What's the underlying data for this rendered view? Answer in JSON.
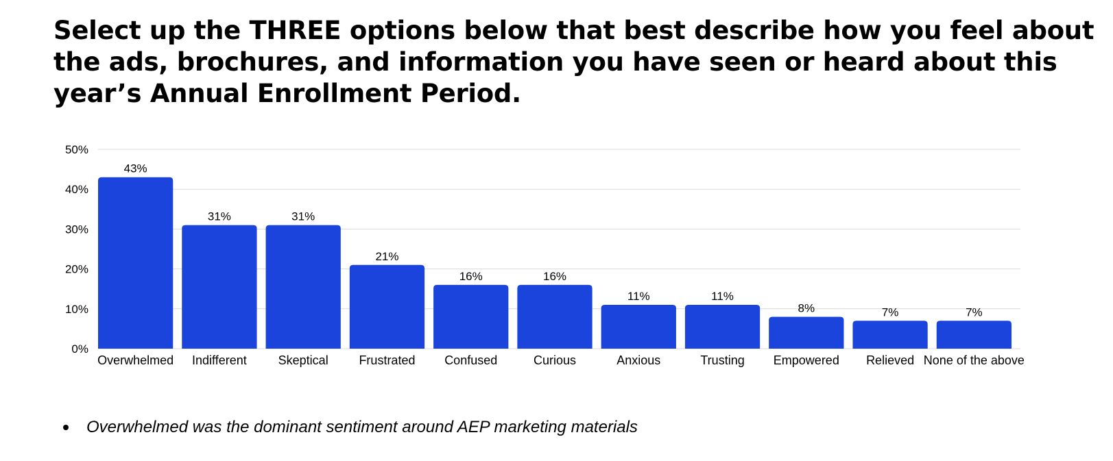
{
  "title": "Select up the THREE options below that best describe how you feel about the ads, brochures, and information you have seen or heard about this year’s Annual Enrollment Period.",
  "chart_data": {
    "type": "bar",
    "categories": [
      "Overwhelmed",
      "Indifferent",
      "Skeptical",
      "Frustrated",
      "Confused",
      "Curious",
      "Anxious",
      "Trusting",
      "Empowered",
      "Relieved",
      "None of the above"
    ],
    "values": [
      43,
      31,
      31,
      21,
      16,
      16,
      11,
      11,
      8,
      7,
      7
    ],
    "data_labels": [
      "43%",
      "31%",
      "31%",
      "21%",
      "16%",
      "16%",
      "11%",
      "11%",
      "8%",
      "7%",
      "7%"
    ],
    "y_ticks": [
      0,
      10,
      20,
      30,
      40,
      50
    ],
    "y_tick_labels": [
      "0%",
      "10%",
      "20%",
      "30%",
      "40%",
      "50%"
    ],
    "ylim": [
      0,
      50
    ],
    "grid": true,
    "xlabel": "",
    "ylabel": "",
    "bar_color": "#1a44dc"
  },
  "notes": [
    "Overwhelmed was the dominant sentiment around AEP marketing materials"
  ]
}
